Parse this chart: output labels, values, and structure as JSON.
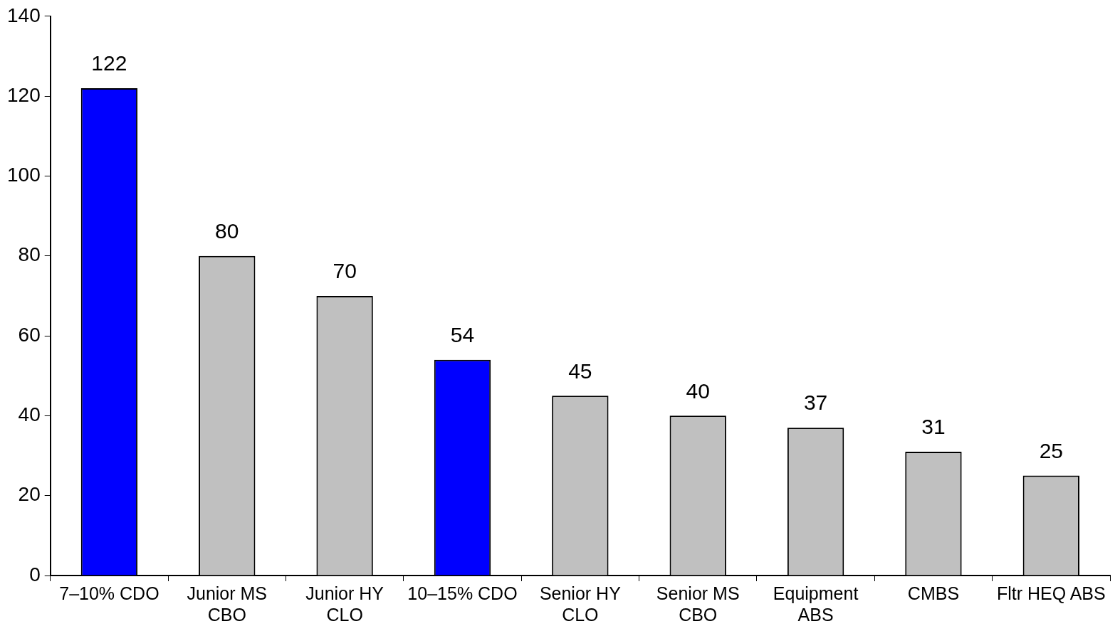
{
  "chart_data": {
    "type": "bar",
    "categories": [
      "7–10% CDO",
      "Junior MS CBO",
      "Junior HY CLO",
      "10–15% CDO",
      "Senior HY CLO",
      "Senior MS CBO",
      "Equipment ABS",
      "CMBS",
      "Fltr HEQ ABS"
    ],
    "values": [
      122,
      80,
      70,
      54,
      45,
      40,
      37,
      31,
      25
    ],
    "colors": [
      "#0000ff",
      "#c0c0c0",
      "#c0c0c0",
      "#0000ff",
      "#c0c0c0",
      "#c0c0c0",
      "#c0c0c0",
      "#c0c0c0",
      "#c0c0c0"
    ],
    "ylim": [
      0,
      140
    ],
    "yticks": [
      0,
      20,
      40,
      60,
      80,
      100,
      120,
      140
    ],
    "data_labels": true,
    "grid": false,
    "legend": false
  }
}
